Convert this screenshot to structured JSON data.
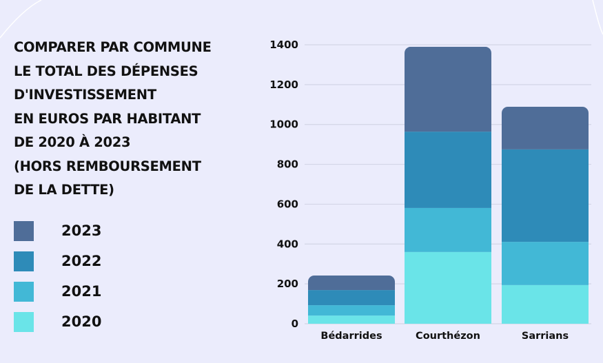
{
  "chart_data": {
    "type": "bar",
    "stacked": true,
    "title_lines": [
      "COMPARER PAR COMMUNE",
      "LE TOTAL DES DÉPENSES",
      "D'INVESTISSEMENT",
      "EN EUROS PAR HABITANT",
      "DE 2020 À 2023",
      "(HORS REMBOURSEMENT",
      "DE LA DETTE)"
    ],
    "categories": [
      "Bédarrides",
      "Courthézon",
      "Sarrians"
    ],
    "series": [
      {
        "name": "2020",
        "color": "#6ae4e8",
        "values": [
          41,
          360,
          194
        ]
      },
      {
        "name": "2021",
        "color": "#42b8d6",
        "values": [
          52,
          221,
          217
        ]
      },
      {
        "name": "2022",
        "color": "#2e8bb8",
        "values": [
          76,
          383,
          464
        ]
      },
      {
        "name": "2023",
        "color": "#4f6d98",
        "values": [
          73,
          426,
          214
        ]
      }
    ],
    "yticks": [
      0,
      200,
      400,
      600,
      800,
      1000,
      1200,
      1400
    ],
    "ylim": [
      0,
      1400
    ],
    "grid": true,
    "legend_position": "left"
  }
}
